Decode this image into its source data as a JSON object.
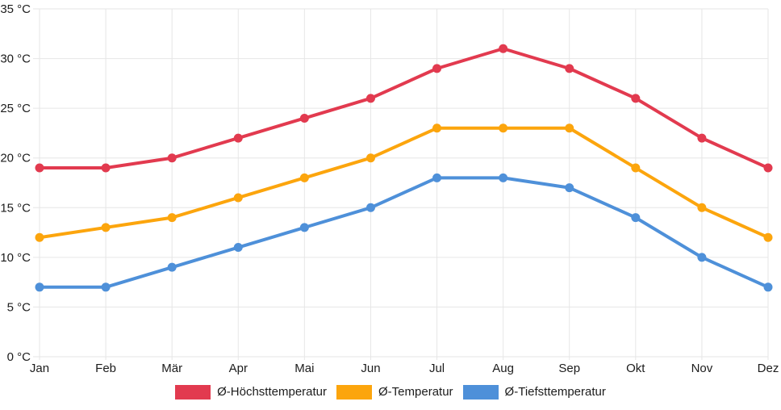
{
  "chart_data": {
    "type": "line",
    "title": "",
    "xlabel": "",
    "ylabel": "",
    "unit": "°C",
    "categories": [
      "Jan",
      "Feb",
      "Mär",
      "Apr",
      "Mai",
      "Jun",
      "Jul",
      "Aug",
      "Sep",
      "Okt",
      "Nov",
      "Dez"
    ],
    "series": [
      {
        "name": "Ø-Höchsttemperatur",
        "color": "#e23a4f",
        "values": [
          19,
          19,
          20,
          22,
          24,
          26,
          29,
          31,
          29,
          26,
          22,
          19
        ]
      },
      {
        "name": "Ø-Temperatur",
        "color": "#fca50d",
        "values": [
          12,
          13,
          14,
          16,
          18,
          20,
          23,
          23,
          23,
          19,
          15,
          12
        ]
      },
      {
        "name": "Ø-Tiefsttemperatur",
        "color": "#4e90d9",
        "values": [
          7,
          7,
          9,
          11,
          13,
          15,
          18,
          18,
          17,
          14,
          10,
          7
        ]
      }
    ],
    "yticks": [
      "35 °C",
      "30 °C",
      "25 °C",
      "20 °C",
      "15 °C",
      "10 °C",
      "5 °C",
      "0 °C"
    ],
    "ylim": [
      0,
      35
    ],
    "ytick_step": 5,
    "grid": true,
    "point_markers": true,
    "legend_position": "bottom"
  },
  "style": {
    "grid_color": "#e6e6e6",
    "text_color": "#1c1c1c",
    "background": "#ffffff",
    "line_width": 4,
    "point_radius": 5.5
  }
}
